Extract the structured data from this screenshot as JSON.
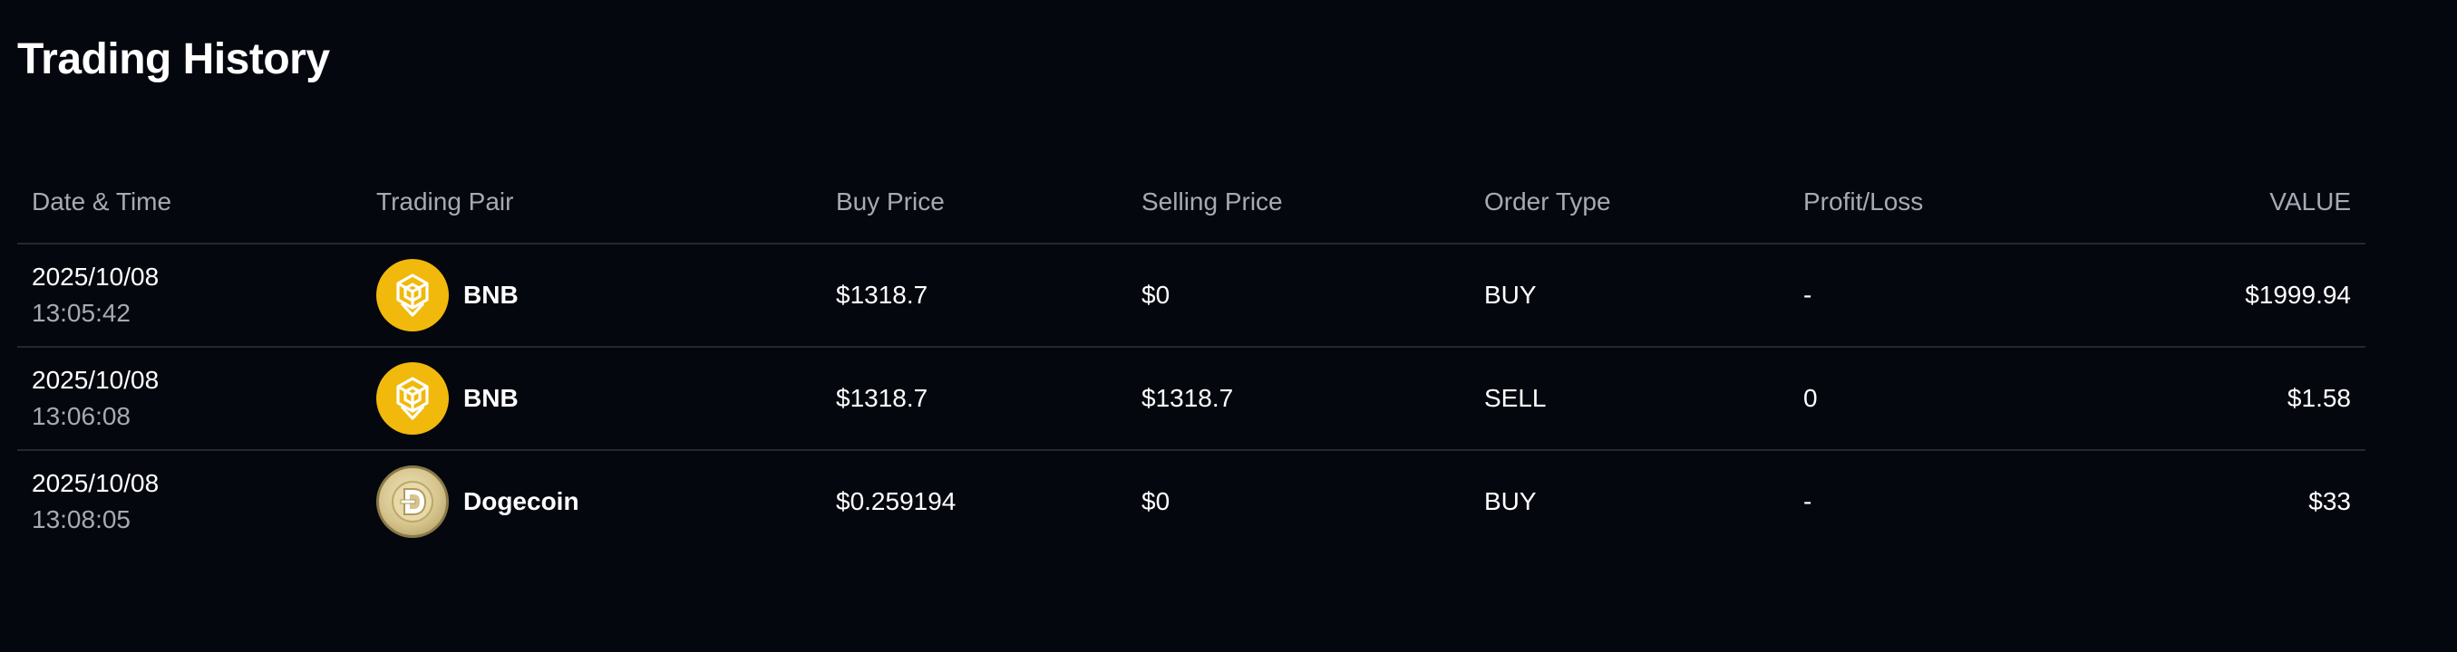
{
  "page": {
    "title": "Trading History"
  },
  "table": {
    "columns": {
      "date_time": "Date & Time",
      "trading_pair": "Trading Pair",
      "buy_price": "Buy Price",
      "selling_price": "Selling Price",
      "order_type": "Order Type",
      "profit_loss": "Profit/Loss",
      "value": "VALUE"
    },
    "rows": [
      {
        "date": "2025/10/08",
        "time": "13:05:42",
        "pair": "BNB",
        "pair_icon": "bnb-icon",
        "buy_price": "$1318.7",
        "selling_price": "$0",
        "order_type": "BUY",
        "profit_loss": "-",
        "value": "$1999.94"
      },
      {
        "date": "2025/10/08",
        "time": "13:06:08",
        "pair": "BNB",
        "pair_icon": "bnb-icon",
        "buy_price": "$1318.7",
        "selling_price": "$1318.7",
        "order_type": "SELL",
        "profit_loss": "0",
        "value": "$1.58"
      },
      {
        "date": "2025/10/08",
        "time": "13:08:05",
        "pair": "Dogecoin",
        "pair_icon": "dogecoin-icon",
        "buy_price": "$0.259194",
        "selling_price": "$0",
        "order_type": "BUY",
        "profit_loss": "-",
        "value": "$33"
      }
    ]
  },
  "colors": {
    "background": "#05070f",
    "text_primary": "#ffffff",
    "text_muted": "#a7aab3",
    "divider": "#242833",
    "bnb_yellow": "#f0b90b"
  }
}
